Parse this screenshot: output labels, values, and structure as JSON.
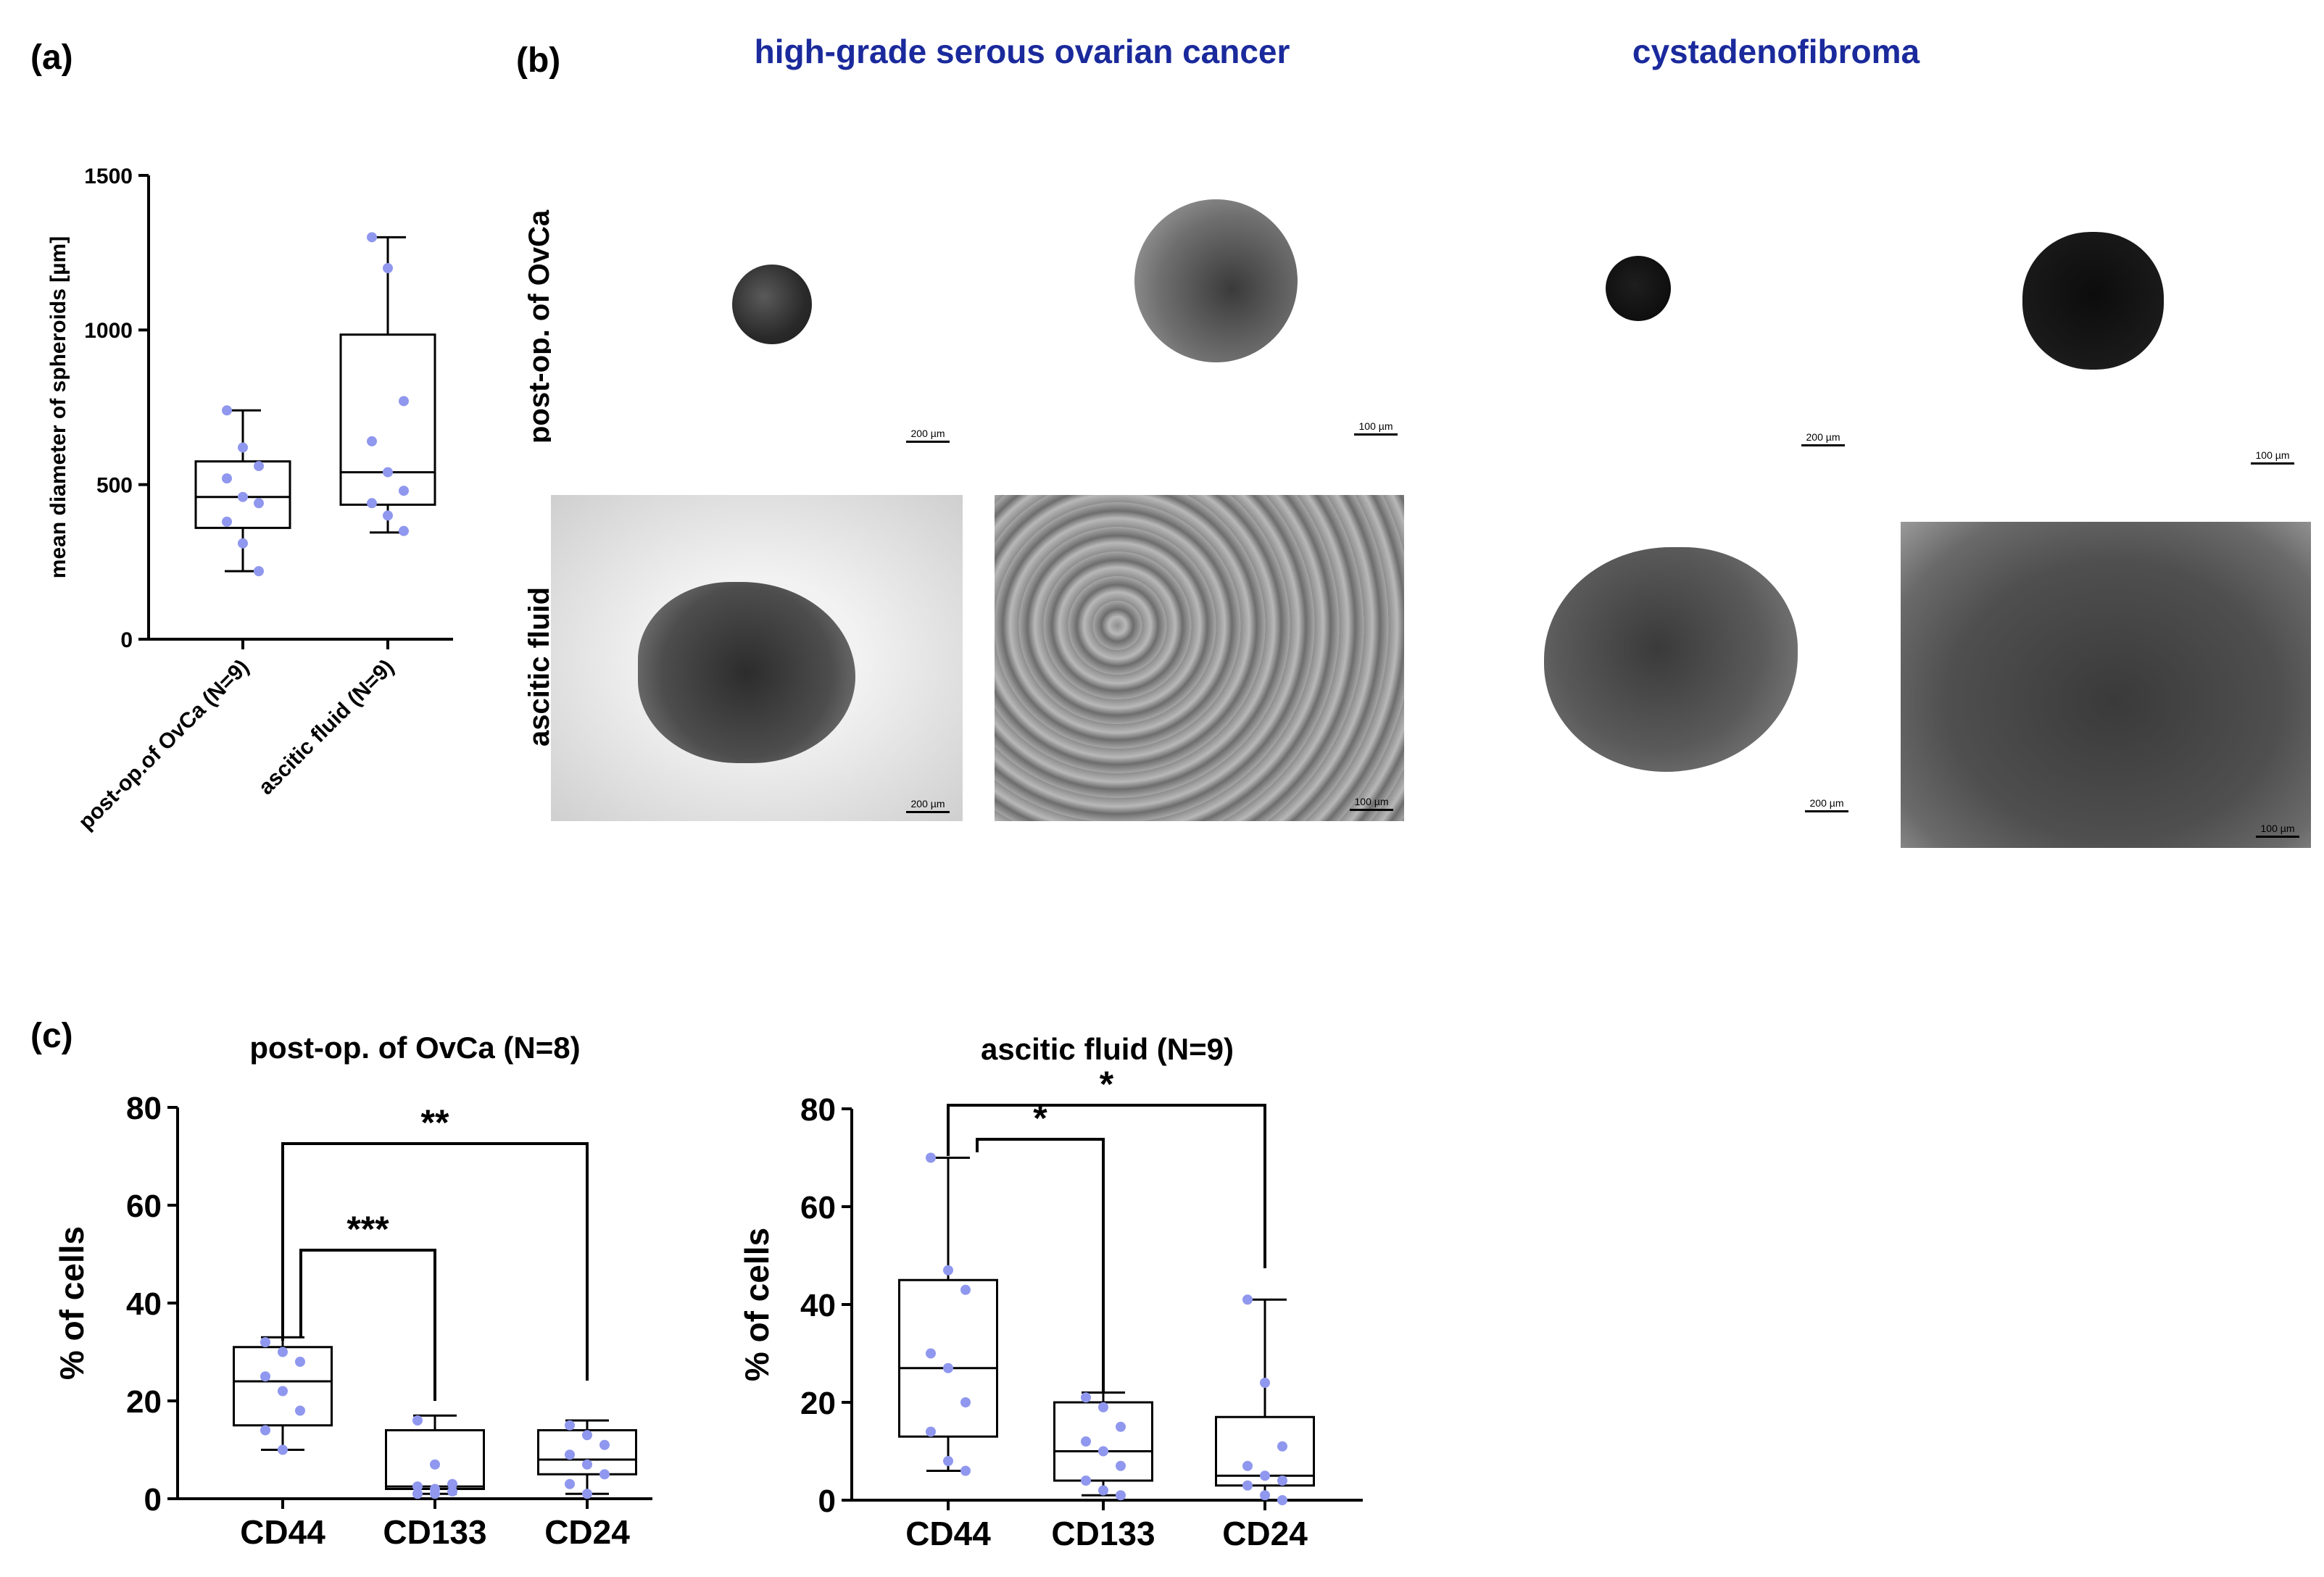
{
  "panel_labels": {
    "a": "(a)",
    "b": "(b)",
    "c": "(c)"
  },
  "panel_b": {
    "col_titles": [
      "high-grade serous ovarian cancer",
      "cystadenofibroma"
    ],
    "row_titles": [
      "post-op. of OvCa",
      "ascitic fluid"
    ],
    "scale_200": "200 µm",
    "scale_100": "100 µm"
  },
  "colors": {
    "dot": "#8f97ee",
    "title_blue": "#1a2a9c"
  },
  "chart_data": [
    {
      "type": "box",
      "panel": "a",
      "ylabel": "mean diameter of spheroids [µm]",
      "ylim": [
        0,
        1500
      ],
      "yticks": [
        "0",
        "500",
        "1000",
        "1500"
      ],
      "categories": [
        "post-op.of OvCa (N=9)",
        "ascitic fluid (N=9)"
      ],
      "boxes": [
        {
          "min": 220,
          "q1": 360,
          "median": 460,
          "q3": 575,
          "max": 740,
          "points": [
            740,
            620,
            560,
            520,
            460,
            440,
            380,
            310,
            220
          ]
        },
        {
          "min": 345,
          "q1": 435,
          "median": 540,
          "q3": 985,
          "max": 1300,
          "points": [
            1300,
            1200,
            770,
            640,
            540,
            480,
            440,
            400,
            350
          ]
        }
      ]
    },
    {
      "type": "box",
      "panel": "c-left",
      "title": "post-op. of OvCa (N=8)",
      "ylabel": "% of cells",
      "ylim": [
        0,
        80
      ],
      "yticks": [
        "0",
        "20",
        "40",
        "60",
        "80"
      ],
      "categories": [
        "CD44",
        "CD133",
        "CD24"
      ],
      "boxes": [
        {
          "min": 10,
          "q1": 15,
          "median": 24,
          "q3": 31,
          "max": 33,
          "points": [
            32,
            30,
            28,
            25,
            22,
            18,
            14,
            10
          ]
        },
        {
          "min": 1,
          "q1": 2,
          "median": 2.5,
          "q3": 14,
          "max": 17,
          "points": [
            16,
            7,
            3,
            2.5,
            2,
            1.5,
            1,
            1
          ]
        },
        {
          "min": 1,
          "q1": 5,
          "median": 8,
          "q3": 14,
          "max": 16,
          "points": [
            15,
            13,
            11,
            9,
            7,
            5,
            3,
            1
          ]
        }
      ],
      "significance": [
        {
          "from": 0,
          "to": 1,
          "label": "***"
        },
        {
          "from": 0,
          "to": 2,
          "label": "**"
        }
      ]
    },
    {
      "type": "box",
      "panel": "c-right",
      "title": "ascitic fluid (N=9)",
      "ylabel": "% of cells",
      "ylim": [
        0,
        80
      ],
      "yticks": [
        "0",
        "20",
        "40",
        "60",
        "80"
      ],
      "categories": [
        "CD44",
        "CD133",
        "CD24"
      ],
      "boxes": [
        {
          "min": 6,
          "q1": 13,
          "median": 27,
          "q3": 45,
          "max": 70,
          "points": [
            70,
            47,
            43,
            30,
            27,
            20,
            14,
            8,
            6
          ]
        },
        {
          "min": 1,
          "q1": 4,
          "median": 10,
          "q3": 20,
          "max": 22,
          "points": [
            21,
            19,
            15,
            12,
            10,
            7,
            4,
            2,
            1
          ]
        },
        {
          "min": 0,
          "q1": 3,
          "median": 5,
          "q3": 17,
          "max": 41,
          "points": [
            41,
            24,
            11,
            7,
            5,
            4,
            3,
            1,
            0
          ]
        }
      ],
      "significance": [
        {
          "from": 0,
          "to": 1,
          "label": "*"
        },
        {
          "from": 0,
          "to": 2,
          "label": "*"
        }
      ]
    }
  ]
}
